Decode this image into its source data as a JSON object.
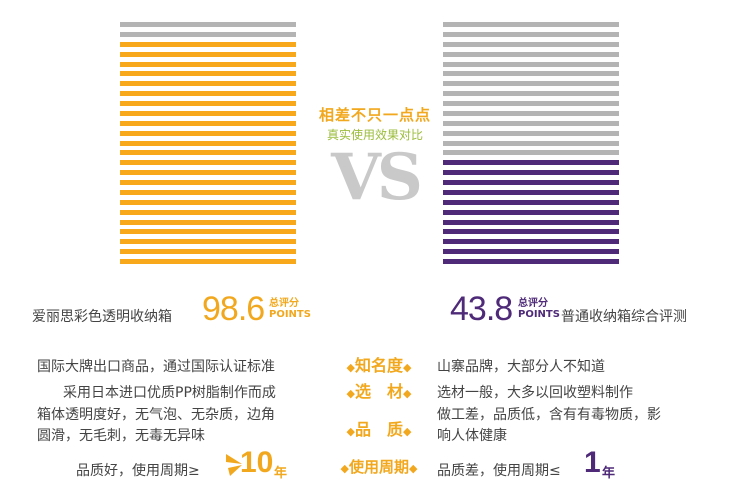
{
  "colors": {
    "orange": "#f7a81b",
    "gray": "#b4b4b4",
    "purple": "#4e2a78",
    "accent": "#f2a81e",
    "green": "#9cbd3c"
  },
  "bars": {
    "count": 25,
    "left_gray_count": 2,
    "right_gray_count": 14
  },
  "headline": {
    "title": "相差不只一点点",
    "subtitle": "真实使用效果对比",
    "vs": "VS"
  },
  "left": {
    "brand": "爱丽思彩色透明收纳箱",
    "score": "98.6",
    "score_label": "总评分",
    "score_points": "POINTS"
  },
  "right": {
    "brand": "普通收纳箱综合评测",
    "score": "43.8",
    "score_label": "总评分",
    "score_points": "POINTS"
  },
  "rows": [
    {
      "label": "知名度",
      "left": "国际大牌出口商品，通过国际认证标准",
      "right": "山寨品牌，大部分人不知道"
    },
    {
      "label": "选　材",
      "left": "采用日本进口优质PP树脂制作而成",
      "right": "选材一般，大多以回收塑料制作"
    },
    {
      "label": "品　质",
      "left_line1": "箱体透明度好，无气泡、无杂质，边角",
      "left_line2": "圆滑，无毛刺，无毒无异味",
      "right_line1": "做工差，品质低，含有有毒物质，影",
      "right_line2": "响人体健康"
    },
    {
      "label": "使用周期",
      "left": "品质好，使用周期≥",
      "left_num": "10",
      "left_unit": "年",
      "right": "品质差，使用周期≤",
      "right_num": "1",
      "right_unit": "年"
    }
  ],
  "diamond": "◆"
}
